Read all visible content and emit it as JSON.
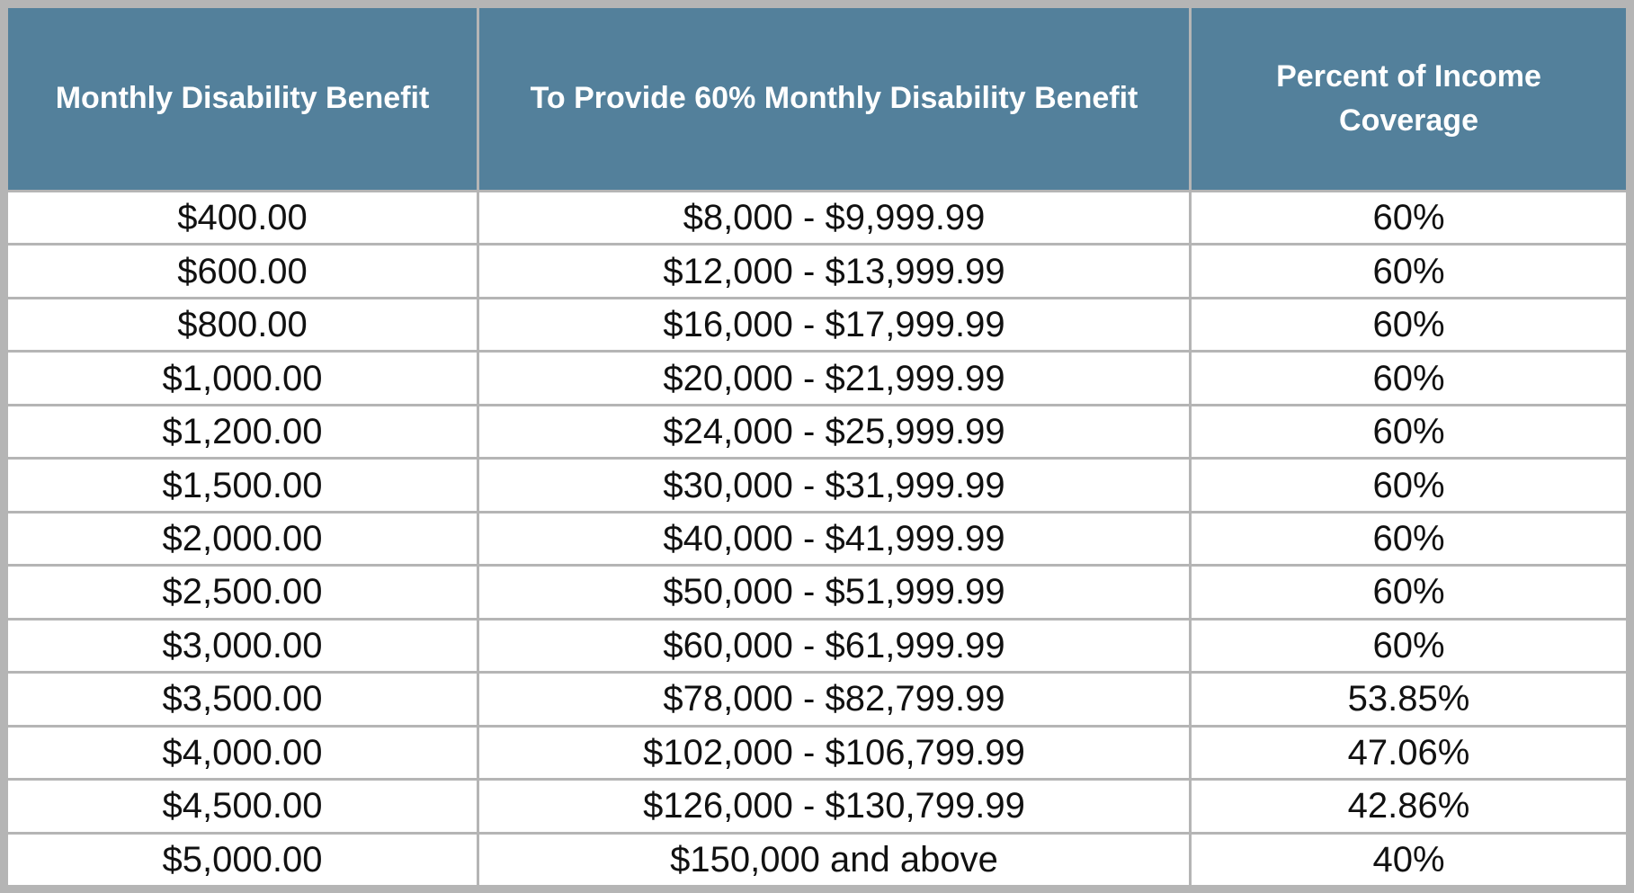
{
  "table": {
    "header": [
      "Monthly Disability Benefit",
      "To Provide 60% Monthly Disability Benefit",
      "Percent of Income Coverage"
    ],
    "rows": [
      [
        "$400.00",
        "$8,000 - $9,999.99",
        "60%"
      ],
      [
        "$600.00",
        "$12,000 - $13,999.99",
        "60%"
      ],
      [
        "$800.00",
        "$16,000 - $17,999.99",
        "60%"
      ],
      [
        "$1,000.00",
        "$20,000 - $21,999.99",
        "60%"
      ],
      [
        "$1,200.00",
        "$24,000 - $25,999.99",
        "60%"
      ],
      [
        "$1,500.00",
        "$30,000 - $31,999.99",
        "60%"
      ],
      [
        "$2,000.00",
        "$40,000 - $41,999.99",
        "60%"
      ],
      [
        "$2,500.00",
        "$50,000 - $51,999.99",
        "60%"
      ],
      [
        "$3,000.00",
        "$60,000 - $61,999.99",
        "60%"
      ],
      [
        "$3,500.00",
        "$78,000 - $82,799.99",
        "53.85%"
      ],
      [
        "$4,000.00",
        "$102,000 - $106,799.99",
        "47.06%"
      ],
      [
        "$4,500.00",
        "$126,000 - $130,799.99",
        "42.86%"
      ],
      [
        "$5,000.00",
        "$150,000 and above",
        "40%"
      ]
    ]
  }
}
